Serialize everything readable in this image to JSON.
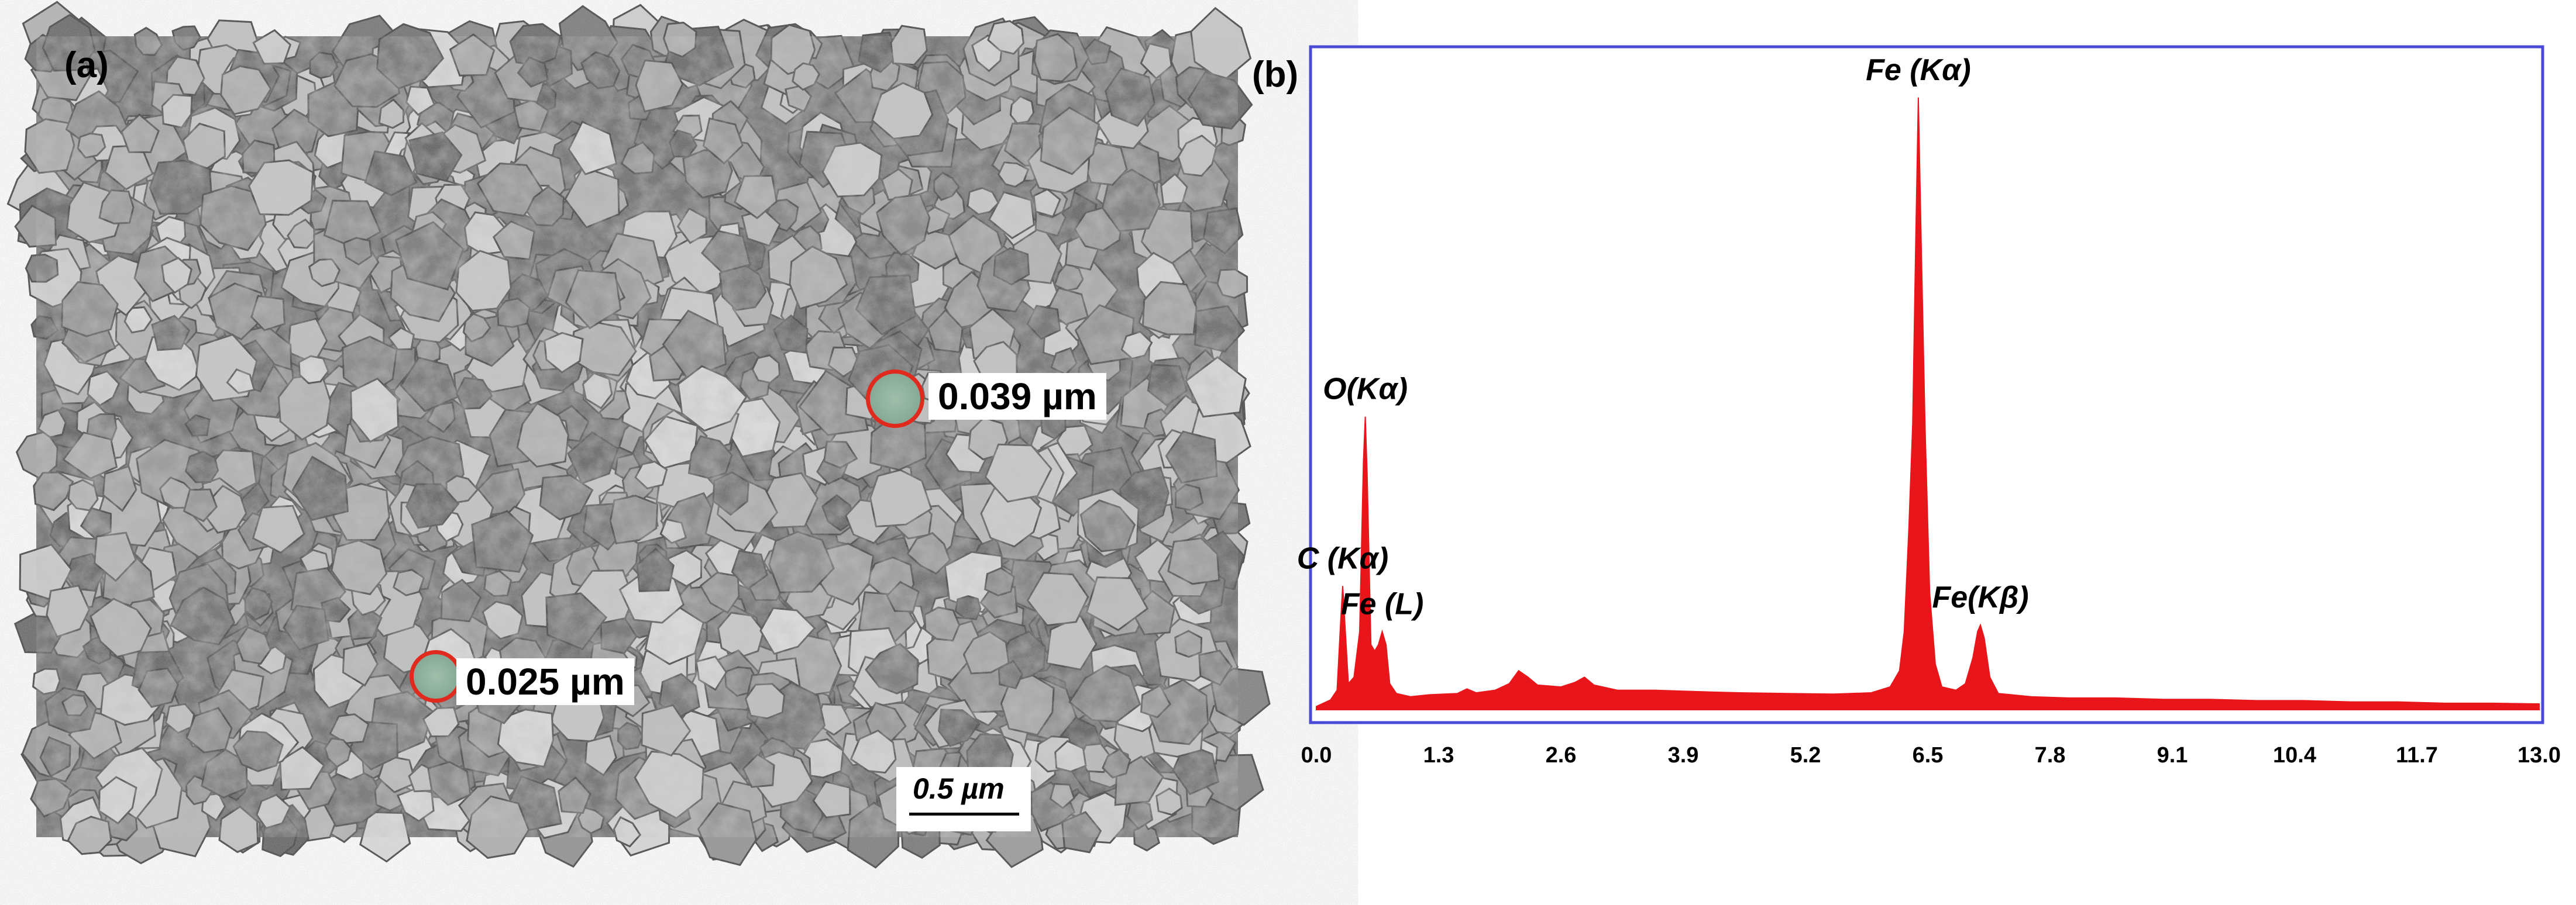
{
  "panel_a": {
    "label": "(a)",
    "particle_sizes": [
      {
        "value": "0.039 µm"
      },
      {
        "value": "0.025 µm"
      }
    ],
    "scale_bar": "0.5 µm",
    "marker_color": "#e02a1e"
  },
  "panel_b": {
    "label": "(b)"
  },
  "chart_data": {
    "type": "area",
    "title": "",
    "xlabel": "",
    "ylabel": "",
    "xlim": [
      0.0,
      13.0
    ],
    "ylim": [
      0,
      100
    ],
    "x_ticks": [
      "0.0",
      "1.3",
      "2.6",
      "3.9",
      "5.2",
      "6.5",
      "7.8",
      "9.1",
      "10.4",
      "11.7",
      "13.0"
    ],
    "series_color": "#e8161b",
    "frame_color": "#4a4ad8",
    "peaks": [
      {
        "label": "C (Kα)",
        "x": 0.28,
        "y": 19
      },
      {
        "label": "O(Kα)",
        "x": 0.52,
        "y": 45
      },
      {
        "label": "Fe (L)",
        "x": 0.7,
        "y": 12
      },
      {
        "label": "Fe (Kα)",
        "x": 6.4,
        "y": 94
      },
      {
        "label": "Fe(Kβ)",
        "x": 7.06,
        "y": 13
      }
    ],
    "spectrum": [
      [
        0.0,
        0.5
      ],
      [
        0.15,
        1.5
      ],
      [
        0.22,
        3
      ],
      [
        0.26,
        14
      ],
      [
        0.28,
        19
      ],
      [
        0.3,
        14
      ],
      [
        0.34,
        4
      ],
      [
        0.4,
        5
      ],
      [
        0.46,
        12
      ],
      [
        0.5,
        38
      ],
      [
        0.52,
        45
      ],
      [
        0.54,
        36
      ],
      [
        0.58,
        10
      ],
      [
        0.62,
        9
      ],
      [
        0.66,
        10
      ],
      [
        0.7,
        12
      ],
      [
        0.74,
        10
      ],
      [
        0.78,
        4
      ],
      [
        0.85,
        2.5
      ],
      [
        1.0,
        2
      ],
      [
        1.2,
        2.3
      ],
      [
        1.5,
        2.5
      ],
      [
        1.6,
        3.2
      ],
      [
        1.7,
        2.6
      ],
      [
        1.9,
        3
      ],
      [
        2.05,
        4
      ],
      [
        2.15,
        6
      ],
      [
        2.25,
        5
      ],
      [
        2.35,
        3.8
      ],
      [
        2.6,
        3.5
      ],
      [
        2.75,
        4.2
      ],
      [
        2.85,
        5
      ],
      [
        2.95,
        3.8
      ],
      [
        3.2,
        3
      ],
      [
        3.6,
        3
      ],
      [
        4.0,
        2.8
      ],
      [
        4.5,
        2.6
      ],
      [
        5.0,
        2.5
      ],
      [
        5.5,
        2.4
      ],
      [
        5.9,
        2.6
      ],
      [
        6.1,
        3.5
      ],
      [
        6.2,
        6
      ],
      [
        6.25,
        12
      ],
      [
        6.3,
        28
      ],
      [
        6.34,
        44
      ],
      [
        6.37,
        70
      ],
      [
        6.4,
        94
      ],
      [
        6.43,
        72
      ],
      [
        6.47,
        44
      ],
      [
        6.52,
        18
      ],
      [
        6.58,
        7
      ],
      [
        6.65,
        3.5
      ],
      [
        6.8,
        3
      ],
      [
        6.9,
        4
      ],
      [
        6.98,
        8
      ],
      [
        7.03,
        12
      ],
      [
        7.06,
        13
      ],
      [
        7.1,
        11
      ],
      [
        7.16,
        5
      ],
      [
        7.25,
        2.5
      ],
      [
        7.6,
        2
      ],
      [
        8.0,
        1.8
      ],
      [
        8.5,
        1.8
      ],
      [
        9.0,
        1.6
      ],
      [
        9.5,
        1.6
      ],
      [
        10.0,
        1.4
      ],
      [
        10.5,
        1.4
      ],
      [
        11.0,
        1.2
      ],
      [
        11.5,
        1.2
      ],
      [
        12.0,
        1.0
      ],
      [
        12.5,
        1.0
      ],
      [
        13.0,
        0.9
      ]
    ]
  }
}
